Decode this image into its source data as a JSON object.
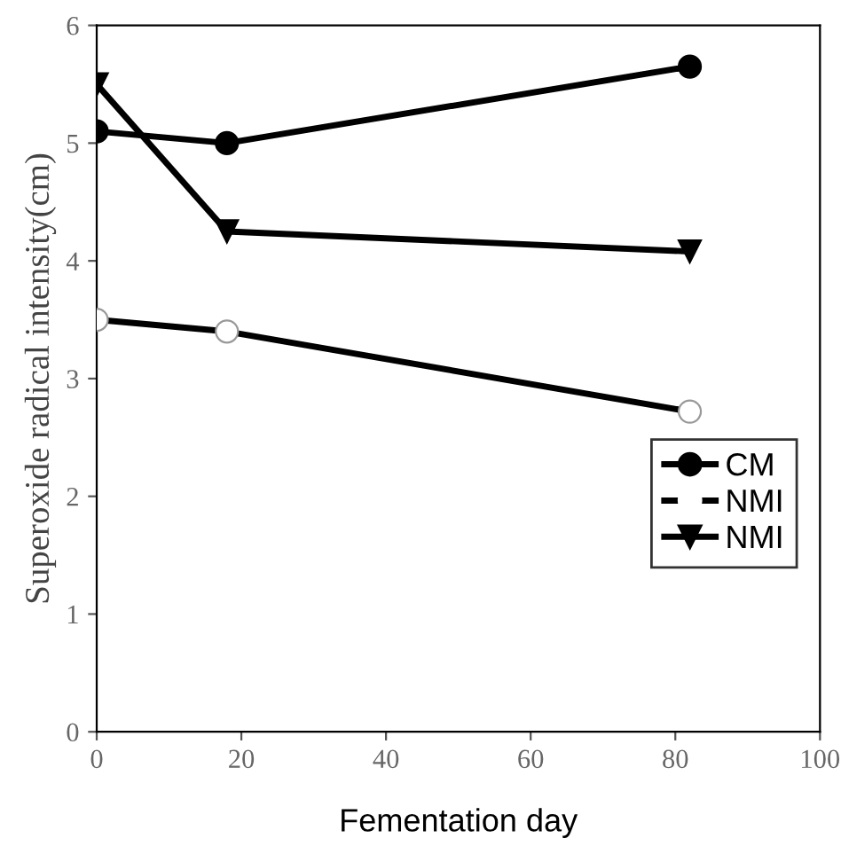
{
  "chart_data": {
    "type": "line",
    "xlabel": "Fementation day",
    "ylabel": "Superoxide radical intensity(cm)",
    "x": [
      0,
      18,
      82
    ],
    "series": [
      {
        "name": "CM",
        "color": "#000000",
        "values": [
          5.1,
          5.0,
          5.65
        ],
        "marker": "circle"
      },
      {
        "name": "NMI",
        "color": "#ffffff",
        "values": [
          3.5,
          3.4,
          2.72
        ],
        "marker": "circle"
      },
      {
        "name": "NMI",
        "color": "#000000",
        "values": [
          5.5,
          4.25,
          4.08
        ],
        "marker": "triangle"
      }
    ],
    "xlim": [
      0,
      100
    ],
    "xticks": [
      0,
      20,
      40,
      60,
      80,
      100
    ],
    "ylim": [
      0,
      6
    ],
    "yticks": [
      0,
      1,
      2,
      3,
      4,
      5,
      6
    ],
    "grid": false,
    "legend": "bottom right",
    "line_style": "solid"
  }
}
